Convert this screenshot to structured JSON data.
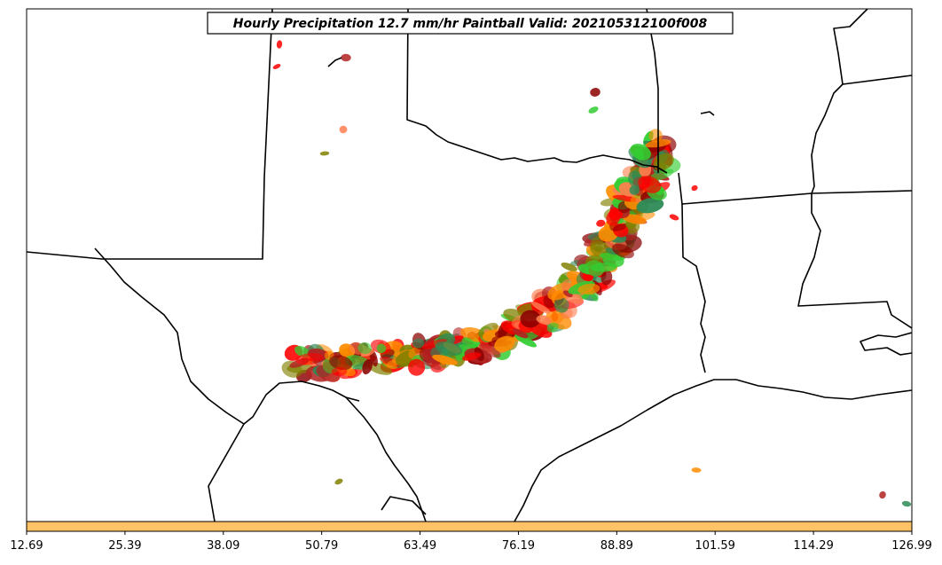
{
  "title": "Hourly Precipitation 12.7 mm/hr Paintball Valid: 202105312100f008",
  "colorbar": {
    "color": "#ffc266",
    "ticks": [
      "12.69",
      "25.39",
      "38.09",
      "50.79",
      "63.49",
      "76.19",
      "88.89",
      "101.59",
      "114.29",
      "126.99"
    ]
  },
  "map": {
    "region": "Southern Plains / Texas",
    "member_colors": [
      "#ff0000",
      "#8b0000",
      "#ff8c00",
      "#ff7f50",
      "#32cd32",
      "#808000",
      "#2e8b57",
      "#b22222"
    ]
  }
}
